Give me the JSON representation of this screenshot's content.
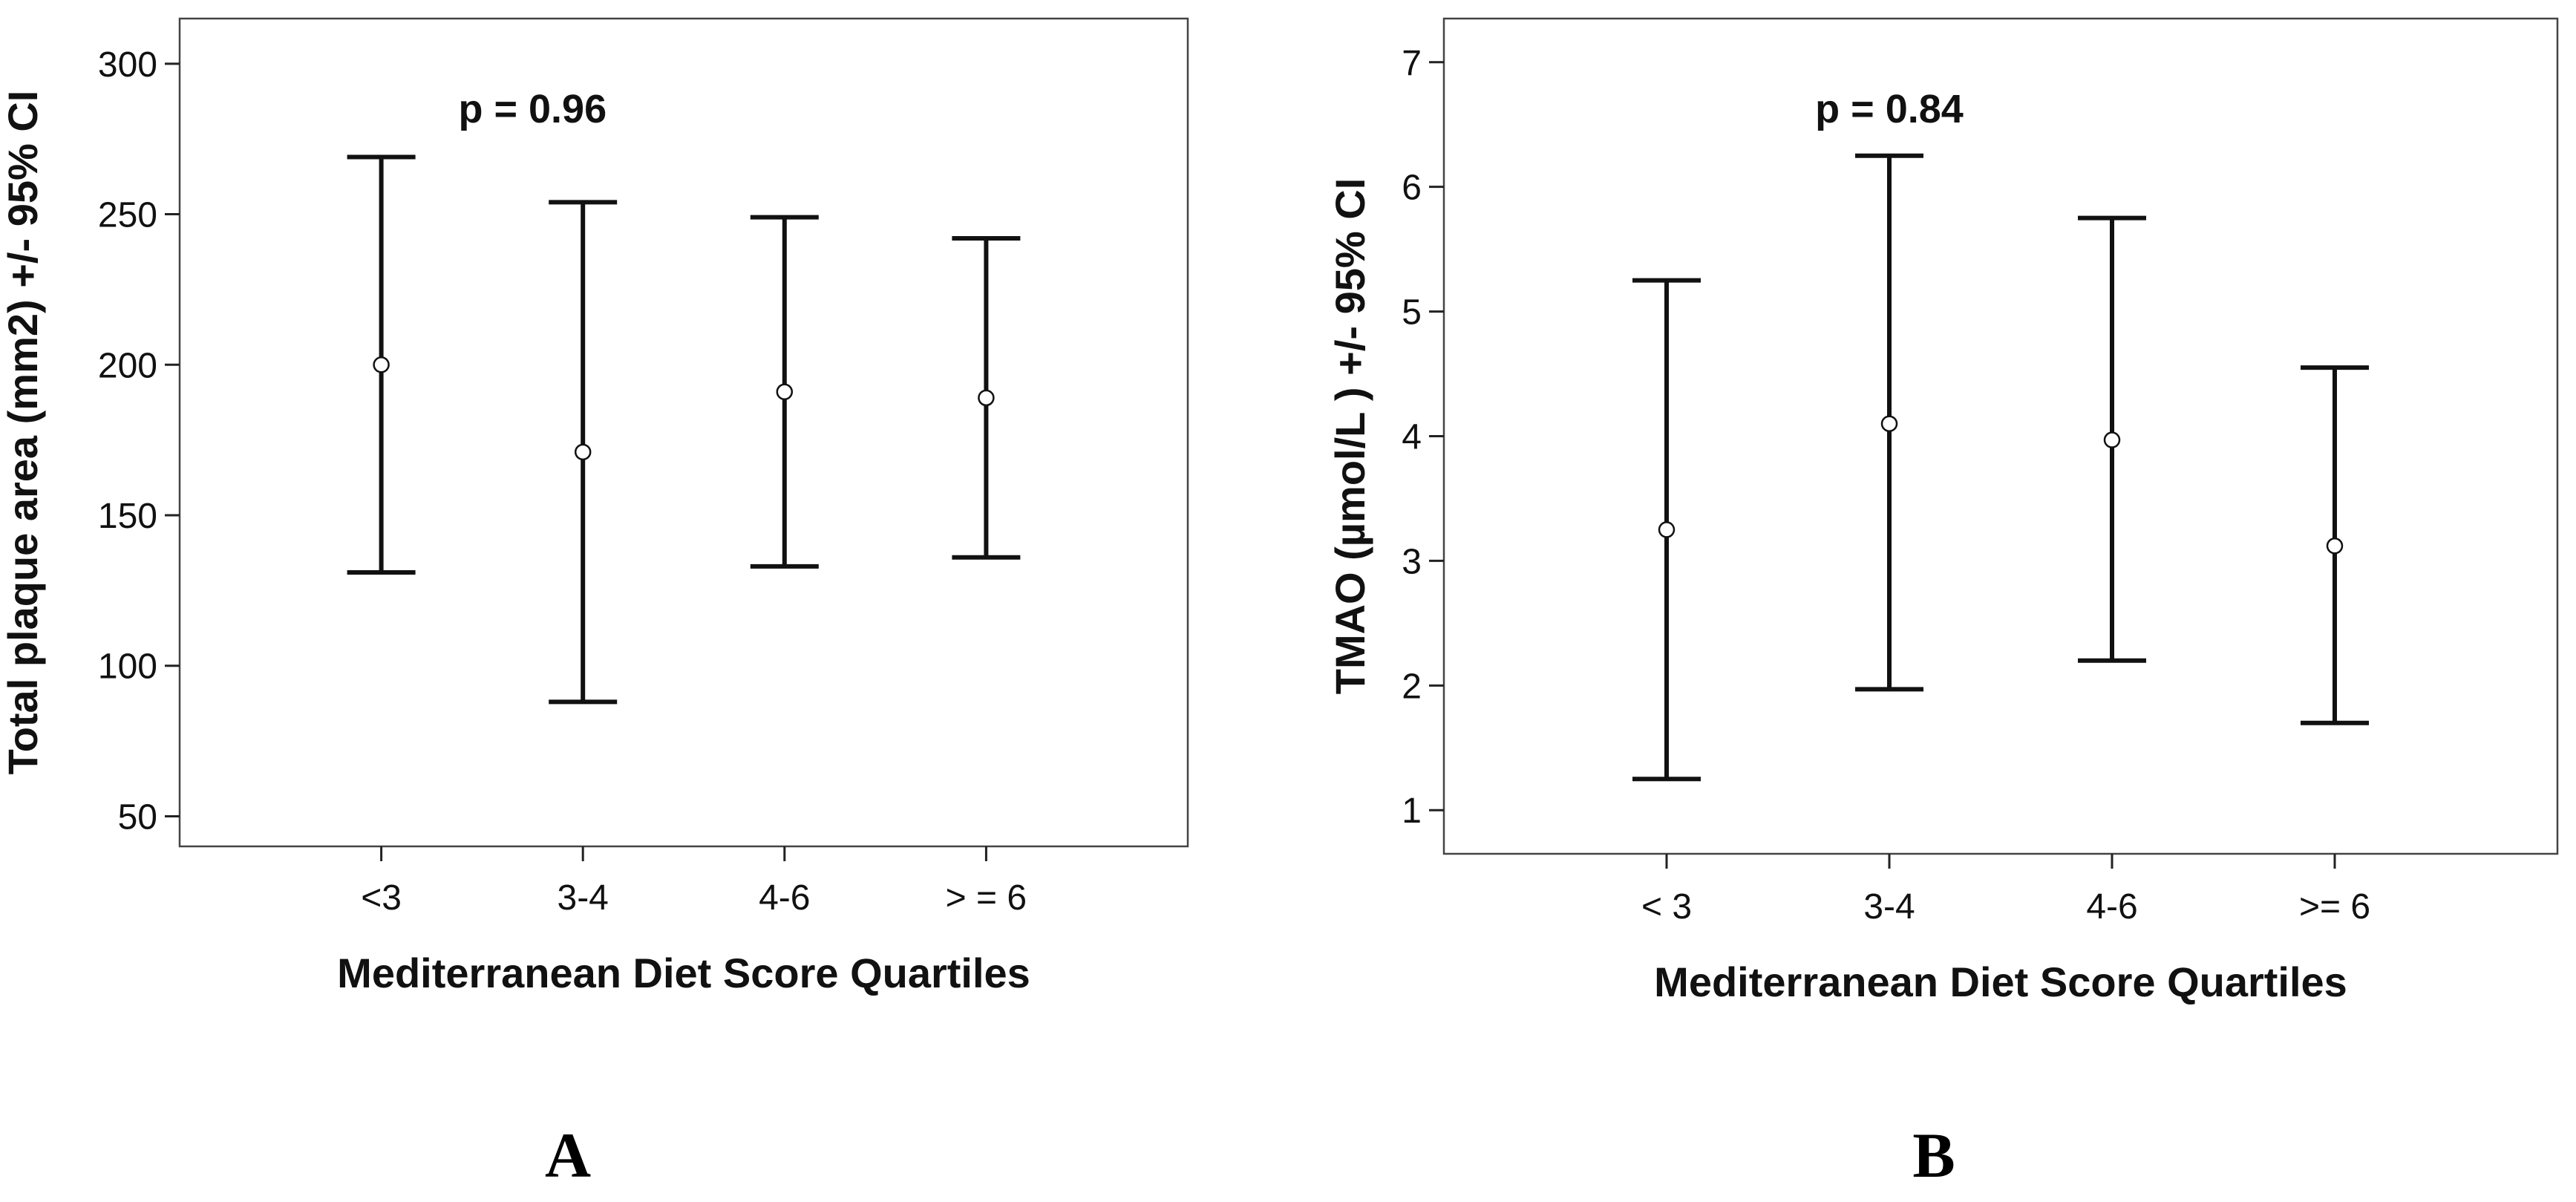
{
  "chart_data": [
    {
      "panel": "A",
      "type": "errorbar",
      "xlabel": "Mediterranean Diet Score Quartiles",
      "ylabel": "Total plaque area (mm2) +/- 95% CI",
      "categories": [
        "<3",
        "3-4",
        "4-6",
        "> = 6"
      ],
      "yticks": [
        50,
        100,
        150,
        200,
        250,
        300
      ],
      "ylim": [
        40,
        315
      ],
      "means": [
        200,
        171,
        191,
        189
      ],
      "lower": [
        131,
        88,
        133,
        136
      ],
      "upper": [
        269,
        254,
        249,
        242
      ],
      "annotation": "p = 0.96",
      "annotation_x": 1.75,
      "grid": false
    },
    {
      "panel": "B",
      "type": "errorbar",
      "xlabel": "Mediterranean Diet Score Quartiles",
      "ylabel": "TMAO (µmol/L ) +/- 95% CI",
      "categories": [
        "< 3",
        "3-4",
        "4-6",
        ">= 6"
      ],
      "yticks": [
        1,
        2,
        3,
        4,
        5,
        6,
        7
      ],
      "ylim": [
        0.65,
        7.35
      ],
      "means": [
        3.25,
        4.1,
        3.97,
        3.12
      ],
      "lower": [
        1.25,
        1.97,
        2.2,
        1.7
      ],
      "upper": [
        5.25,
        6.25,
        5.75,
        4.55
      ],
      "annotation": "p = 0.84",
      "annotation_x": 2.0,
      "grid": false
    }
  ]
}
